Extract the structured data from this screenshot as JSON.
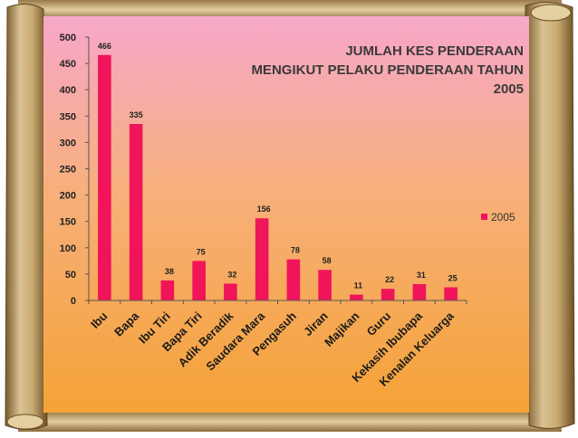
{
  "colors": {
    "bar": "#f0145a",
    "bg_top": "#f7a7c9",
    "bg_bottom": "#f5a236",
    "scroll_light": "#d8c08c",
    "scroll_dark": "#8a6a38"
  },
  "chart_data": {
    "type": "bar",
    "title": "JUMLAH KES PENDERAAN MENGIKUT PELAKU PENDERAAN TAHUN 2005",
    "title_lines": [
      "JUMLAH KES PENDERAAN",
      "MENGIKUT PELAKU PENDERAAN TAHUN",
      "2005"
    ],
    "xlabel": "",
    "ylabel": "",
    "ylim": [
      0,
      500
    ],
    "yticks": [
      0,
      50,
      100,
      150,
      200,
      250,
      300,
      350,
      400,
      450,
      500
    ],
    "grid": false,
    "legend_position": "right",
    "categories": [
      "Ibu",
      "Bapa",
      "Ibu Tiri",
      "Bapa Tiri",
      "Adik Beradik",
      "Saudara Mara",
      "Pengasuh",
      "Jiran",
      "Majikan",
      "Guru",
      "Kekasih Ibubapa",
      "Kenalan Keluarga"
    ],
    "series": [
      {
        "name": "2005",
        "values": [
          466,
          335,
          38,
          75,
          32,
          156,
          78,
          58,
          11,
          22,
          31,
          25
        ]
      }
    ]
  }
}
